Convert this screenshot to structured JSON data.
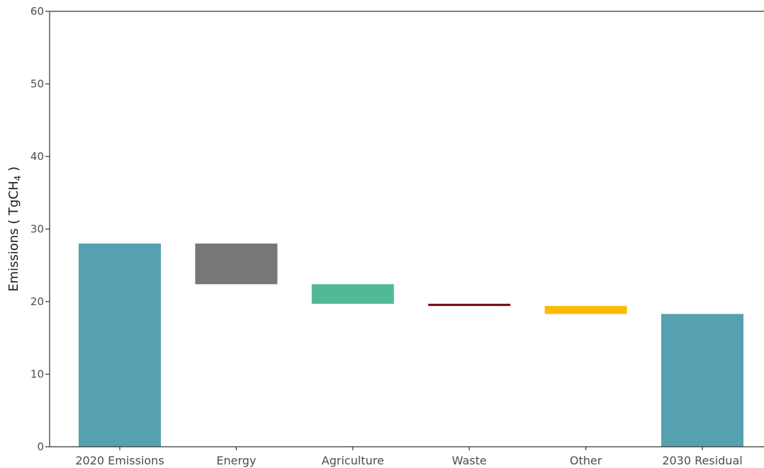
{
  "chart_data": {
    "type": "bar",
    "subtype": "waterfall",
    "categories": [
      "2020 Emissions",
      "Energy",
      "Agriculture",
      "Waste",
      "Other",
      "2030 Residual"
    ],
    "bars": [
      {
        "category": "2020 Emissions",
        "start": 0,
        "end": 28.0,
        "color": "#55a1af"
      },
      {
        "category": "Energy",
        "start": 28.0,
        "end": 22.4,
        "color": "#777777"
      },
      {
        "category": "Agriculture",
        "start": 22.4,
        "end": 19.7,
        "color": "#52b997"
      },
      {
        "category": "Waste",
        "start": 19.7,
        "end": 19.4,
        "color": "#7a0019"
      },
      {
        "category": "Other",
        "start": 19.4,
        "end": 18.3,
        "color": "#fbba00"
      },
      {
        "category": "2030 Residual",
        "start": 0,
        "end": 18.3,
        "color": "#55a1af"
      }
    ],
    "ylabel": {
      "text": "Emissions ( TgCH",
      "subscript": "4",
      "suffix": " )"
    },
    "xlabel": "",
    "title": "",
    "ylim": [
      0,
      60
    ],
    "yticks": [
      "0",
      "10",
      "20",
      "30",
      "40",
      "50",
      "60"
    ],
    "grid": false,
    "legend": "none"
  }
}
